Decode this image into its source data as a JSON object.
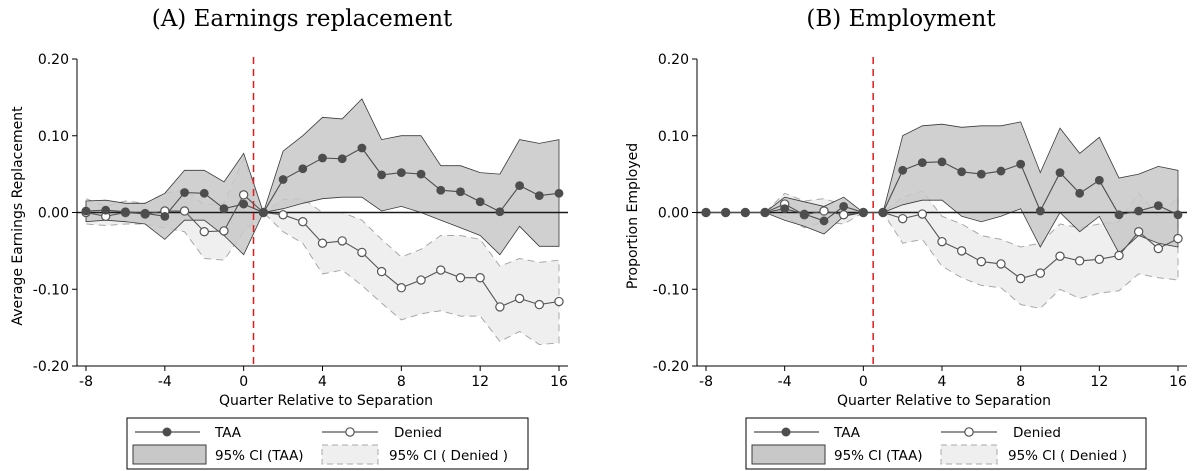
{
  "legend": {
    "taa": "TAA",
    "denied": "Denied",
    "ci_taa": "95% CI (TAA)",
    "ci_denied": "95% CI ( Denied )"
  },
  "colors": {
    "taa_line": "#4d4d4d",
    "denied_line": "#555555",
    "ci_taa_fill": "#c8c8c8",
    "ci_taa_edge": "#3a3a3a",
    "ci_denied_fill": "#efefef",
    "ci_denied_edge": "#a8a8a8",
    "event_line": "#e31a1c",
    "zero_line": "#1a1a1a"
  },
  "chart_data": [
    {
      "type": "line",
      "title": "(A) Earnings replacement",
      "xlabel": "Quarter Relative to Separation",
      "ylabel": "Average Earnings Replacement",
      "xlim": [
        -8,
        16
      ],
      "ylim": [
        -0.2,
        0.2
      ],
      "xticks": [
        -8,
        -4,
        0,
        4,
        8,
        12,
        16
      ],
      "yticks": [
        -0.2,
        -0.1,
        0.0,
        0.1,
        0.2
      ],
      "ytick_labels": [
        "-0.20",
        "-0.10",
        "0.00",
        "0.10",
        "0.20"
      ],
      "event_x": 0.5,
      "x": [
        -8,
        -7,
        -6,
        -5,
        -4,
        -3,
        -2,
        -1,
        0,
        1,
        2,
        3,
        4,
        5,
        6,
        7,
        8,
        9,
        10,
        11,
        12,
        13,
        14,
        15,
        16
      ],
      "series": [
        {
          "name": "TAA",
          "marker": "filled",
          "values": [
            0.002,
            0.003,
            0.001,
            -0.001,
            -0.005,
            0.026,
            0.025,
            0.005,
            0.011,
            0.0,
            0.043,
            0.057,
            0.071,
            0.07,
            0.084,
            0.049,
            0.052,
            0.05,
            0.029,
            0.027,
            0.014,
            0.001,
            0.035,
            0.022,
            0.025
          ],
          "ci_lower": [
            -0.012,
            -0.01,
            -0.012,
            -0.015,
            -0.035,
            -0.01,
            -0.01,
            -0.03,
            -0.055,
            0.0,
            0.005,
            0.012,
            0.018,
            0.02,
            0.02,
            0.002,
            0.008,
            0.0,
            -0.01,
            -0.02,
            -0.03,
            -0.055,
            -0.018,
            -0.044,
            -0.044
          ],
          "ci_upper": [
            0.015,
            0.016,
            0.012,
            0.012,
            0.025,
            0.055,
            0.055,
            0.04,
            0.077,
            0.0,
            0.08,
            0.1,
            0.124,
            0.122,
            0.148,
            0.095,
            0.1,
            0.1,
            0.061,
            0.061,
            0.052,
            0.05,
            0.095,
            0.09,
            0.095
          ]
        },
        {
          "name": "Denied",
          "marker": "hollow",
          "values": [
            0.0,
            -0.005,
            0.0,
            -0.002,
            0.002,
            0.002,
            -0.025,
            -0.024,
            0.023,
            0.0,
            -0.003,
            -0.012,
            -0.04,
            -0.037,
            -0.052,
            -0.077,
            -0.098,
            -0.088,
            -0.075,
            -0.085,
            -0.085,
            -0.123,
            -0.112,
            -0.12,
            -0.116
          ],
          "ci_lower": [
            -0.015,
            -0.017,
            -0.015,
            -0.015,
            -0.02,
            -0.025,
            -0.06,
            -0.062,
            -0.025,
            0.0,
            -0.025,
            -0.04,
            -0.08,
            -0.075,
            -0.095,
            -0.118,
            -0.14,
            -0.132,
            -0.128,
            -0.135,
            -0.135,
            -0.168,
            -0.155,
            -0.172,
            -0.17
          ],
          "ci_upper": [
            0.018,
            0.008,
            0.015,
            0.012,
            0.025,
            0.03,
            0.01,
            0.012,
            0.07,
            0.0,
            0.017,
            0.018,
            0.0,
            0.0,
            -0.01,
            -0.035,
            -0.058,
            -0.048,
            -0.03,
            -0.03,
            -0.035,
            -0.07,
            -0.06,
            -0.065,
            -0.062
          ]
        }
      ]
    },
    {
      "type": "line",
      "title": "(B) Employment",
      "xlabel": "Quarter Relative to Separation",
      "ylabel": "Proportion Employed",
      "xlim": [
        -8,
        16
      ],
      "ylim": [
        -0.2,
        0.2
      ],
      "xticks": [
        -8,
        -4,
        0,
        4,
        8,
        12,
        16
      ],
      "yticks": [
        -0.2,
        -0.1,
        0.0,
        0.1,
        0.2
      ],
      "ytick_labels": [
        "-0.20",
        "-0.10",
        "0.00",
        "0.10",
        "0.20"
      ],
      "event_x": 0.5,
      "x": [
        -8,
        -7,
        -6,
        -5,
        -4,
        -3,
        -2,
        -1,
        0,
        1,
        2,
        3,
        4,
        5,
        6,
        7,
        8,
        9,
        10,
        11,
        12,
        13,
        14,
        15,
        16
      ],
      "series": [
        {
          "name": "TAA",
          "marker": "filled",
          "values": [
            0.0,
            0.0,
            0.0,
            0.0,
            0.005,
            -0.002,
            -0.011,
            0.008,
            0.0,
            0.0,
            0.055,
            0.065,
            0.066,
            0.053,
            0.05,
            0.054,
            0.063,
            0.002,
            0.052,
            0.025,
            0.042,
            -0.003,
            0.002,
            0.009,
            -0.003
          ],
          "ci_lower": [
            0.0,
            0.0,
            0.0,
            0.0,
            -0.01,
            -0.018,
            -0.028,
            -0.005,
            0.0,
            0.0,
            0.01,
            0.016,
            0.016,
            -0.005,
            -0.012,
            -0.005,
            0.005,
            -0.045,
            0.0,
            -0.025,
            -0.005,
            -0.053,
            -0.03,
            -0.04,
            -0.045
          ],
          "ci_upper": [
            0.0,
            0.0,
            0.0,
            0.0,
            0.02,
            0.014,
            0.008,
            0.02,
            0.0,
            0.0,
            0.1,
            0.113,
            0.115,
            0.111,
            0.113,
            0.113,
            0.118,
            0.052,
            0.11,
            0.077,
            0.098,
            0.045,
            0.05,
            0.06,
            0.055
          ]
        },
        {
          "name": "Denied",
          "marker": "hollow",
          "values": [
            0.0,
            0.0,
            0.0,
            0.0,
            0.011,
            -0.003,
            0.002,
            -0.003,
            0.0,
            0.0,
            -0.008,
            -0.002,
            -0.038,
            -0.05,
            -0.064,
            -0.067,
            -0.086,
            -0.079,
            -0.057,
            -0.063,
            -0.061,
            -0.056,
            -0.025,
            -0.047,
            -0.034
          ],
          "ci_lower": [
            0.0,
            0.0,
            0.0,
            0.0,
            -0.005,
            -0.02,
            -0.012,
            -0.015,
            0.0,
            0.0,
            -0.04,
            -0.035,
            -0.07,
            -0.085,
            -0.095,
            -0.098,
            -0.12,
            -0.125,
            -0.1,
            -0.112,
            -0.105,
            -0.102,
            -0.08,
            -0.085,
            -0.088
          ],
          "ci_upper": [
            0.0,
            0.0,
            0.0,
            0.0,
            0.025,
            0.015,
            0.018,
            0.01,
            0.0,
            0.0,
            0.02,
            0.028,
            -0.005,
            -0.015,
            -0.03,
            -0.035,
            -0.045,
            -0.04,
            -0.015,
            -0.02,
            -0.015,
            -0.012,
            0.025,
            -0.005,
            0.02
          ]
        }
      ]
    }
  ]
}
